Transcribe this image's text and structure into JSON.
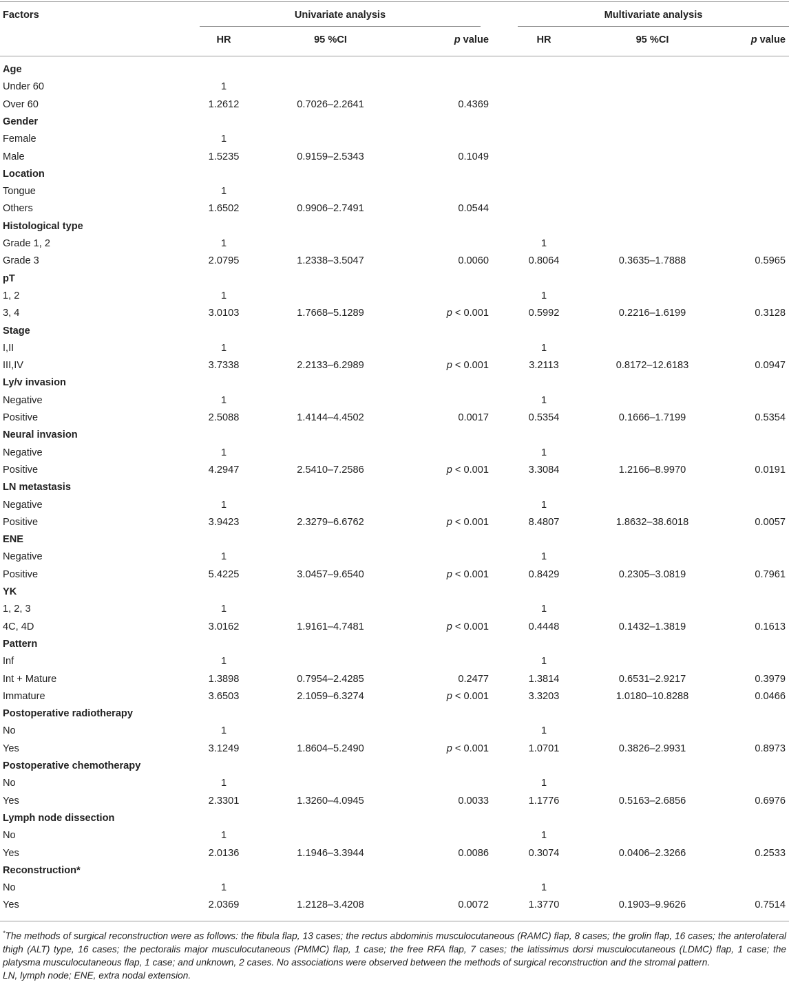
{
  "header": {
    "factors": "Factors",
    "univariate": "Univariate analysis",
    "multivariate": "Multivariate analysis",
    "hr": "HR",
    "ci": "95 %CI",
    "p_italic": "p",
    "p_rest": " value"
  },
  "rows": [
    {
      "label": "Age",
      "group": true
    },
    {
      "label": "Under 60",
      "hr1": "1"
    },
    {
      "label": "Over 60",
      "hr1": "1.2612",
      "ci1": "0.7026–2.2641",
      "p1": "0.4369"
    },
    {
      "label": "Gender",
      "group": true
    },
    {
      "label": "Female",
      "hr1": "1"
    },
    {
      "label": "Male",
      "hr1": "1.5235",
      "ci1": "0.9159–2.5343",
      "p1": "0.1049"
    },
    {
      "label": "Location",
      "group": true
    },
    {
      "label": "Tongue",
      "hr1": "1"
    },
    {
      "label": "Others",
      "hr1": "1.6502",
      "ci1": "0.9906–2.7491",
      "p1": "0.0544"
    },
    {
      "label": "Histological type",
      "group": true
    },
    {
      "label": "Grade 1, 2",
      "hr1": "1",
      "hr2": "1"
    },
    {
      "label": "Grade 3",
      "hr1": "2.0795",
      "ci1": "1.2338–3.5047",
      "p1": "0.0060",
      "hr2": "0.8064",
      "ci2": "0.3635–1.7888",
      "p2": "0.5965"
    },
    {
      "label": "pT",
      "group": true
    },
    {
      "label": "1, 2",
      "hr1": "1",
      "hr2": "1"
    },
    {
      "label": "3, 4",
      "hr1": "3.0103",
      "ci1": "1.7668–5.1289",
      "p1": "p < 0.001",
      "hr2": "0.5992",
      "ci2": "0.2216–1.6199",
      "p2": "0.3128"
    },
    {
      "label": "Stage",
      "group": true
    },
    {
      "label": "I,II",
      "hr1": "1",
      "hr2": "1"
    },
    {
      "label": "III,IV",
      "hr1": "3.7338",
      "ci1": "2.2133–6.2989",
      "p1": "p < 0.001",
      "hr2": "3.2113",
      "ci2": "0.8172–12.6183",
      "p2": "0.0947"
    },
    {
      "label": "Ly/v invasion",
      "group": true
    },
    {
      "label": "Negative",
      "hr1": "1",
      "hr2": "1"
    },
    {
      "label": "Positive",
      "hr1": "2.5088",
      "ci1": "1.4144–4.4502",
      "p1": "0.0017",
      "hr2": "0.5354",
      "ci2": "0.1666–1.7199",
      "p2": "0.5354"
    },
    {
      "label": "Neural invasion",
      "group": true
    },
    {
      "label": "Negative",
      "hr1": "1",
      "hr2": "1"
    },
    {
      "label": "Positive",
      "hr1": "4.2947",
      "ci1": "2.5410–7.2586",
      "p1": "p < 0.001",
      "hr2": "3.3084",
      "ci2": "1.2166–8.9970",
      "p2": "0.0191"
    },
    {
      "label": "LN metastasis",
      "group": true
    },
    {
      "label": "Negative",
      "hr1": "1",
      "hr2": "1"
    },
    {
      "label": "Positive",
      "hr1": "3.9423",
      "ci1": "2.3279–6.6762",
      "p1": "p < 0.001",
      "hr2": "8.4807",
      "ci2": "1.8632–38.6018",
      "p2": "0.0057"
    },
    {
      "label": "ENE",
      "group": true
    },
    {
      "label": "Negative",
      "hr1": "1",
      "hr2": "1"
    },
    {
      "label": "Positive",
      "hr1": "5.4225",
      "ci1": "3.0457–9.6540",
      "p1": "p < 0.001",
      "hr2": "0.8429",
      "ci2": "0.2305–3.0819",
      "p2": "0.7961"
    },
    {
      "label": "YK",
      "group": true
    },
    {
      "label": "1, 2, 3",
      "hr1": "1",
      "hr2": "1"
    },
    {
      "label": "4C, 4D",
      "hr1": "3.0162",
      "ci1": "1.9161–4.7481",
      "p1": "p < 0.001",
      "hr2": "0.4448",
      "ci2": "0.1432–1.3819",
      "p2": "0.1613"
    },
    {
      "label": "Pattern",
      "group": true
    },
    {
      "label": "Inf",
      "hr1": "1",
      "hr2": "1"
    },
    {
      "label": "Int + Mature",
      "hr1": "1.3898",
      "ci1": "0.7954–2.4285",
      "p1": "0.2477",
      "hr2": "1.3814",
      "ci2": "0.6531–2.9217",
      "p2": "0.3979"
    },
    {
      "label": "Immature",
      "hr1": "3.6503",
      "ci1": "2.1059–6.3274",
      "p1": "p < 0.001",
      "hr2": "3.3203",
      "ci2": "1.0180–10.8288",
      "p2": "0.0466"
    },
    {
      "label": "Postoperative radiotherapy",
      "group": true
    },
    {
      "label": "No",
      "hr1": "1",
      "hr2": "1"
    },
    {
      "label": "Yes",
      "hr1": "3.1249",
      "ci1": "1.8604–5.2490",
      "p1": "p < 0.001",
      "hr2": "1.0701",
      "ci2": "0.3826–2.9931",
      "p2": "0.8973"
    },
    {
      "label": "Postoperative chemotherapy",
      "group": true
    },
    {
      "label": "No",
      "hr1": "1",
      "hr2": "1"
    },
    {
      "label": "Yes",
      "hr1": "2.3301",
      "ci1": "1.3260–4.0945",
      "p1": "0.0033",
      "hr2": "1.1776",
      "ci2": "0.5163–2.6856",
      "p2": "0.6976"
    },
    {
      "label": "Lymph node dissection",
      "group": true
    },
    {
      "label": "No",
      "hr1": "1",
      "hr2": "1"
    },
    {
      "label": "Yes",
      "hr1": "2.0136",
      "ci1": "1.1946–3.3944",
      "p1": "0.0086",
      "hr2": "0.3074",
      "ci2": "0.0406–2.3266",
      "p2": "0.2533"
    },
    {
      "label": "Reconstruction*",
      "group": true
    },
    {
      "label": "No",
      "hr1": "1",
      "hr2": "1"
    },
    {
      "label": "Yes",
      "hr1": "2.0369",
      "ci1": "1.2128–3.4208",
      "p1": "0.0072",
      "hr2": "1.3770",
      "ci2": "0.1903–9.9626",
      "p2": "0.7514"
    }
  ],
  "footnote": {
    "mark": "*",
    "text": "The methods of surgical reconstruction were as follows: the fibula flap, 13 cases; the rectus abdominis musculocutaneous (RAMC) flap, 8 cases; the grolin flap, 16 cases; the anterolateral thigh (ALT) type, 16 cases; the pectoralis major musculocutaneous (PMMC) flap, 1 case; the free RFA flap, 7 cases; the latissimus dorsi musculocutaneous (LDMC) flap, 1 case; the platysma musculocutaneous flap, 1 case; and unknown, 2 cases. No associations were observed between the methods of surgical reconstruction and the stromal pattern.",
    "abbrev": "LN, lymph node; ENE, extra nodal extension."
  }
}
